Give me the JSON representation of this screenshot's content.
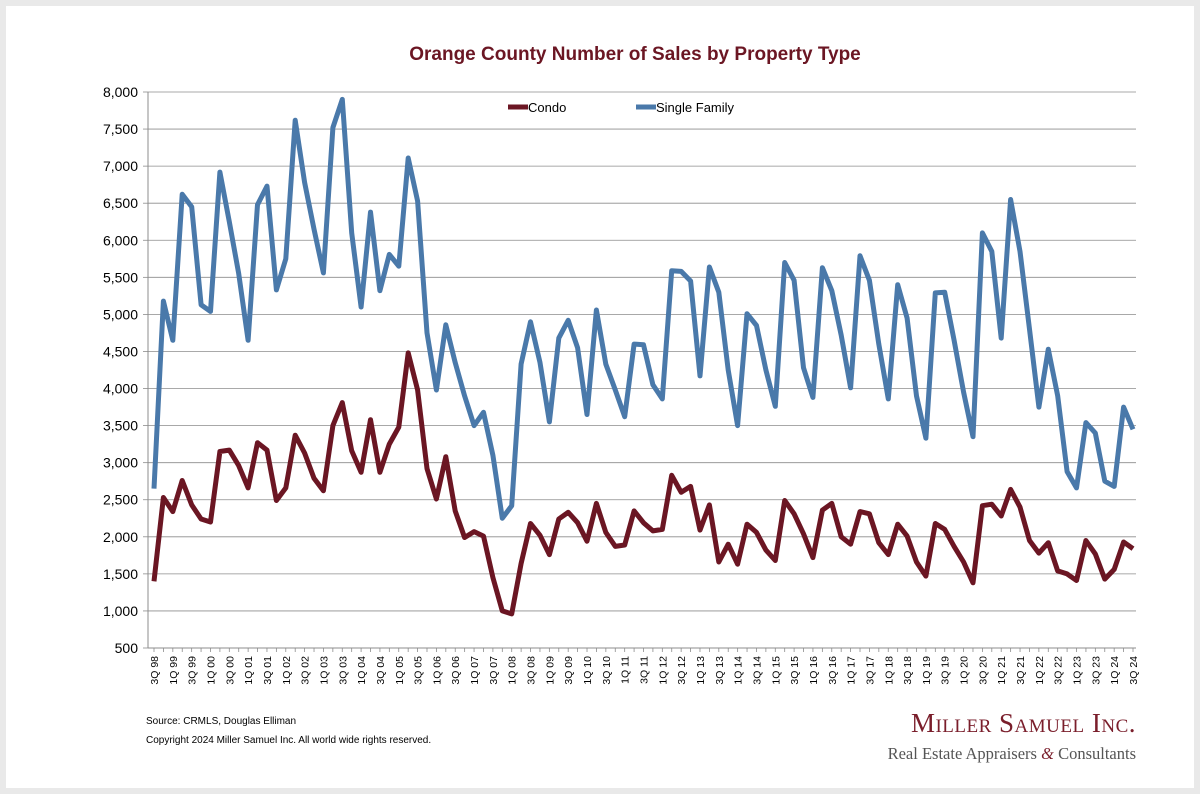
{
  "chart_data": {
    "type": "line",
    "title": "Orange County Number of Sales by Property Type",
    "xlabel": "",
    "ylabel": "",
    "ylim": [
      500,
      8000
    ],
    "yticks": [
      500,
      1000,
      1500,
      2000,
      2500,
      3000,
      3500,
      4000,
      4500,
      5000,
      5500,
      6000,
      6500,
      7000,
      7500,
      8000
    ],
    "ytick_labels": [
      "500",
      "1,000",
      "1,500",
      "2,000",
      "2,500",
      "3,000",
      "3,500",
      "4,000",
      "4,500",
      "5,000",
      "5,500",
      "6,000",
      "6,500",
      "7,000",
      "7,500",
      "8,000"
    ],
    "grid": true,
    "legend_position": "top-center",
    "x": [
      "3Q98",
      "4Q98",
      "1Q99",
      "2Q99",
      "3Q99",
      "4Q99",
      "1Q00",
      "2Q00",
      "3Q00",
      "4Q00",
      "1Q01",
      "2Q01",
      "3Q01",
      "4Q01",
      "1Q02",
      "2Q02",
      "3Q02",
      "4Q02",
      "1Q03",
      "2Q03",
      "3Q03",
      "4Q03",
      "1Q04",
      "2Q04",
      "3Q04",
      "4Q04",
      "1Q05",
      "2Q05",
      "3Q05",
      "4Q05",
      "1Q06",
      "2Q06",
      "3Q06",
      "4Q06",
      "1Q07",
      "2Q07",
      "3Q07",
      "4Q07",
      "1Q08",
      "2Q08",
      "3Q08",
      "4Q08",
      "1Q09",
      "2Q09",
      "3Q09",
      "4Q09",
      "1Q10",
      "2Q10",
      "3Q10",
      "4Q10",
      "1Q11",
      "2Q11",
      "3Q11",
      "4Q11",
      "1Q12",
      "2Q12",
      "3Q12",
      "4Q12",
      "1Q13",
      "2Q13",
      "3Q13",
      "4Q13",
      "1Q14",
      "2Q14",
      "3Q14",
      "4Q14",
      "1Q15",
      "2Q15",
      "3Q15",
      "4Q15",
      "1Q16",
      "2Q16",
      "3Q16",
      "4Q16",
      "1Q17",
      "2Q17",
      "3Q17",
      "4Q17",
      "1Q18",
      "2Q18",
      "3Q18",
      "4Q18",
      "1Q19",
      "2Q19",
      "3Q19",
      "4Q19",
      "1Q20",
      "2Q20",
      "3Q20",
      "4Q20",
      "1Q21",
      "2Q21",
      "3Q21",
      "4Q21",
      "1Q22",
      "2Q22",
      "3Q22",
      "4Q22",
      "1Q23",
      "2Q23",
      "3Q23",
      "4Q23",
      "1Q24",
      "2Q24",
      "3Q24"
    ],
    "xtick_labels": [
      "3Q 98",
      "1Q 99",
      "3Q 99",
      "1Q 00",
      "3Q 00",
      "1Q 01",
      "3Q 01",
      "1Q 02",
      "3Q 02",
      "1Q 03",
      "3Q 03",
      "1Q 04",
      "3Q 04",
      "1Q 05",
      "3Q 05",
      "1Q 06",
      "3Q 06",
      "1Q 07",
      "3Q 07",
      "1Q 08",
      "3Q 08",
      "1Q 09",
      "3Q 09",
      "1Q 10",
      "3Q 10",
      "1Q 11",
      "3Q 11",
      "1Q 12",
      "3Q 12",
      "1Q 13",
      "3Q 13",
      "1Q 14",
      "3Q 14",
      "1Q 15",
      "3Q 15",
      "1Q 16",
      "3Q 16",
      "1Q 17",
      "3Q 17",
      "1Q 18",
      "3Q 18",
      "1Q 19",
      "3Q 19",
      "1Q 20",
      "3Q 20",
      "1Q 21",
      "3Q 21",
      "1Q 22",
      "3Q 22",
      "1Q 23",
      "3Q 23",
      "1Q 24",
      "3Q 24"
    ],
    "series": [
      {
        "name": "Condo",
        "color": "#6b1623",
        "values": [
          1400,
          2530,
          2340,
          2760,
          2430,
          2240,
          2200,
          3150,
          3170,
          2960,
          2660,
          3270,
          3170,
          2490,
          2660,
          3370,
          3130,
          2790,
          2620,
          3500,
          3810,
          3160,
          2870,
          3580,
          2870,
          3250,
          3480,
          4480,
          3980,
          2920,
          2510,
          3080,
          2350,
          1990,
          2070,
          2010,
          1450,
          1000,
          960,
          1640,
          2180,
          2020,
          1760,
          2240,
          2330,
          2190,
          1940,
          2450,
          2060,
          1870,
          1890,
          2350,
          2190,
          2080,
          2100,
          2830,
          2600,
          2680,
          2090,
          2430,
          1660,
          1900,
          1630,
          2170,
          2060,
          1820,
          1680,
          2490,
          2310,
          2040,
          1720,
          2360,
          2450,
          2000,
          1900,
          2340,
          2310,
          1920,
          1760,
          2170,
          2010,
          1660,
          1470,
          2180,
          2100,
          1870,
          1660,
          1380,
          2420,
          2440,
          2280,
          2640,
          2400,
          1950,
          1780,
          1920,
          1540,
          1500,
          1410,
          1950,
          1770,
          1430,
          1560,
          1930,
          1840
        ]
      },
      {
        "name": "Single Family",
        "color": "#4a79aa",
        "values": [
          2650,
          5180,
          4650,
          6620,
          6450,
          5130,
          5040,
          6920,
          6250,
          5550,
          4650,
          6480,
          6730,
          5330,
          5750,
          7620,
          6780,
          6150,
          5560,
          7520,
          7900,
          6100,
          5100,
          6380,
          5320,
          5810,
          5650,
          7110,
          6530,
          4750,
          3980,
          4860,
          4350,
          3900,
          3500,
          3680,
          3100,
          2250,
          2420,
          4330,
          4900,
          4350,
          3550,
          4680,
          4920,
          4550,
          3650,
          5060,
          4330,
          3980,
          3620,
          4600,
          4590,
          4050,
          3860,
          5590,
          5580,
          5450,
          4170,
          5640,
          5300,
          4250,
          3500,
          5010,
          4850,
          4250,
          3760,
          5700,
          5460,
          4280,
          3880,
          5630,
          5320,
          4720,
          4010,
          5790,
          5460,
          4600,
          3860,
          5400,
          4950,
          3900,
          3330,
          5290,
          5300,
          4650,
          3950,
          3350,
          6100,
          5850,
          4680,
          6550,
          5850,
          4800,
          3750,
          4530,
          3900,
          2880,
          2660,
          3540,
          3400,
          2750,
          2680,
          3750,
          3450
        ]
      }
    ]
  },
  "footer": {
    "source": "Source: CRMLS, Douglas Elliman",
    "copyright": "Copyright 2024 Miller Samuel Inc.  All world wide rights reserved."
  },
  "logo": {
    "name": "Miller Samuel Inc.",
    "tagline_before": "Real Estate Appraisers ",
    "tagline_amp": "&",
    "tagline_after": " Consultants"
  }
}
